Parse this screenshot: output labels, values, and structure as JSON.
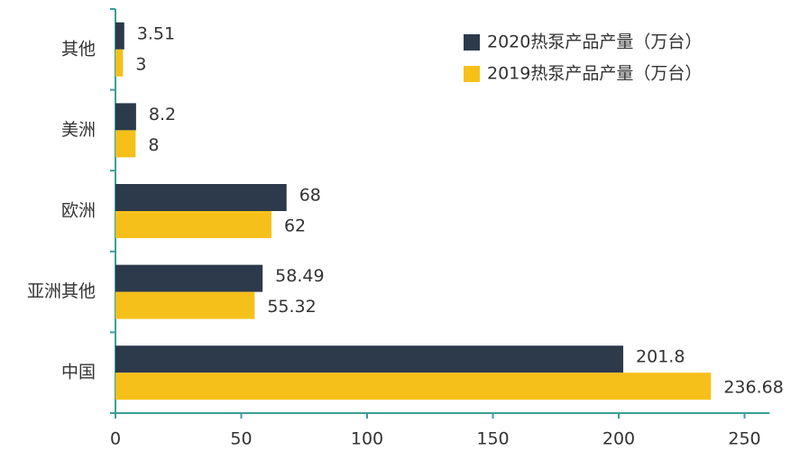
{
  "chart_data": {
    "type": "barh",
    "categories": [
      "其他",
      "美洲",
      "欧洲",
      "亚洲其他",
      "中国"
    ],
    "series": [
      {
        "name": "2020热泵产品产量（万台）",
        "color": "#2c3a4b",
        "values": [
          3.51,
          8.2,
          68,
          58.49,
          201.8
        ]
      },
      {
        "name": "2019热泵产品产量（万台）",
        "color": "#f5c01a",
        "values": [
          3,
          8,
          62,
          55.32,
          236.68
        ]
      }
    ],
    "xlim": [
      0,
      260
    ],
    "xticks": [
      0,
      50,
      100,
      150,
      200,
      250
    ],
    "legend": "top-right"
  }
}
